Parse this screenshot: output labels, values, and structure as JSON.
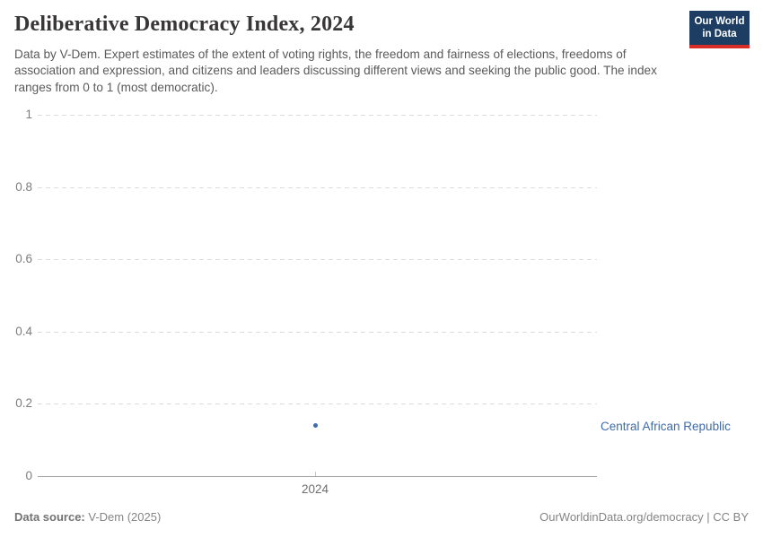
{
  "header": {
    "title": "Deliberative Democracy Index, 2024",
    "subtitle": "Data by V-Dem. Expert estimates of the extent of voting rights, the freedom and fairness of elections, freedoms of association and expression, and citizens and leaders discussing different views and seeking the public good. The index ranges from 0 to 1 (most democratic).",
    "logo": {
      "line1": "Our World",
      "line2": "in Data"
    }
  },
  "chart_data": {
    "type": "scatter",
    "title": "Deliberative Democracy Index, 2024",
    "x": [
      2024
    ],
    "series": [
      {
        "name": "Central African Republic",
        "values": [
          0.14
        ],
        "color": "#3d6bab"
      }
    ],
    "xlabel": "",
    "ylabel": "",
    "ylim": [
      0,
      1
    ],
    "yticks": [
      0,
      0.2,
      0.4,
      0.6,
      0.8,
      1
    ],
    "xticks": [
      "2024"
    ],
    "grid": "horizontal-dashed",
    "legend_position": "right-of-point"
  },
  "colors": {
    "accent_blue": "#3d6bab",
    "point_blue": "#3d6bab",
    "logo_background": "#1d3d63",
    "logo_stripe": "#d92d27",
    "gridline": "#dcdcdc",
    "axis_line": "#a1a1a1"
  },
  "footer": {
    "source_label": "Data source:",
    "source_value": "V-Dem (2025)",
    "link_text": "OurWorldinData.org/democracy | CC BY"
  }
}
